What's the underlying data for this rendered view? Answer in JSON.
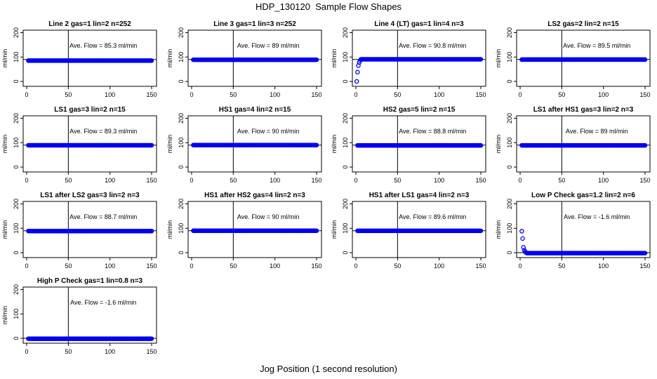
{
  "page": {
    "title": "HDP_130120  Sample Flow Shapes",
    "xlabel": "Jog Position (1 second resolution)"
  },
  "style": {
    "point_color": "#0000ee",
    "axis_color": "#000000"
  },
  "chart_data": [
    {
      "type": "scatter",
      "title": "Line 2 gas=1 lin=2 n=252",
      "ylabel": "ml/min",
      "xlim": [
        0,
        150
      ],
      "ylim": [
        -20,
        210
      ],
      "xticks": [
        0,
        50,
        100,
        150
      ],
      "yticks": [
        0,
        100,
        200
      ],
      "vline": 50,
      "hline": 90,
      "annotation": "Ave. Flow =  85.3  ml/min",
      "shape": "flat",
      "level": 85.3,
      "x": [
        2,
        150
      ]
    },
    {
      "type": "scatter",
      "title": "Line 3 gas=1 lin=3 n=252",
      "ylabel": "ml/min",
      "xlim": [
        0,
        150
      ],
      "ylim": [
        -20,
        210
      ],
      "xticks": [
        0,
        50,
        100,
        150
      ],
      "yticks": [
        0,
        100,
        200
      ],
      "vline": 50,
      "hline": 90,
      "annotation": "Ave. Flow =  89  ml/min",
      "shape": "flat",
      "level": 89,
      "x": [
        2,
        150
      ]
    },
    {
      "type": "scatter",
      "title": "Line 4 (LT) gas=1 lin=4 n=3",
      "ylabel": "ml/min",
      "xlim": [
        0,
        150
      ],
      "ylim": [
        -20,
        210
      ],
      "xticks": [
        0,
        50,
        100,
        150
      ],
      "yticks": [
        0,
        100,
        200
      ],
      "vline": 50,
      "hline": 90,
      "annotation": "Ave. Flow =  90.8  ml/min",
      "shape": "rise",
      "level": 90.8,
      "x": [
        2,
        150
      ],
      "start_points": [
        [
          1,
          0
        ],
        [
          2,
          38
        ],
        [
          3,
          65
        ],
        [
          4,
          78
        ],
        [
          5,
          85
        ]
      ]
    },
    {
      "type": "scatter",
      "title": "LS2 gas=2 lin=2 n=15",
      "ylabel": "ml/min",
      "xlim": [
        0,
        150
      ],
      "ylim": [
        -20,
        210
      ],
      "xticks": [
        0,
        50,
        100,
        150
      ],
      "yticks": [
        0,
        100,
        200
      ],
      "vline": 50,
      "hline": 90,
      "annotation": "Ave. Flow =  89.5  ml/min",
      "shape": "flat",
      "level": 89.5,
      "x": [
        2,
        150
      ]
    },
    {
      "type": "scatter",
      "title": "LS1 gas=3 lin=2 n=15",
      "ylabel": "ml/min",
      "xlim": [
        0,
        150
      ],
      "ylim": [
        -20,
        210
      ],
      "xticks": [
        0,
        50,
        100,
        150
      ],
      "yticks": [
        0,
        100,
        200
      ],
      "vline": 50,
      "hline": 90,
      "annotation": "Ave. Flow =  89.3  ml/min",
      "shape": "flat",
      "level": 89.3,
      "x": [
        2,
        150
      ]
    },
    {
      "type": "scatter",
      "title": "HS1 gas=4 lin=2 n=15",
      "ylabel": "ml/min",
      "xlim": [
        0,
        150
      ],
      "ylim": [
        -20,
        210
      ],
      "xticks": [
        0,
        50,
        100,
        150
      ],
      "yticks": [
        0,
        100,
        200
      ],
      "vline": 50,
      "hline": 90,
      "annotation": "Ave. Flow =  90  ml/min",
      "shape": "flat",
      "level": 90,
      "x": [
        2,
        150
      ]
    },
    {
      "type": "scatter",
      "title": "HS2 gas=5 lin=2 n=15",
      "ylabel": "ml/min",
      "xlim": [
        0,
        150
      ],
      "ylim": [
        -20,
        210
      ],
      "xticks": [
        0,
        50,
        100,
        150
      ],
      "yticks": [
        0,
        100,
        200
      ],
      "vline": 50,
      "hline": 90,
      "annotation": "Ave. Flow =  88.8  ml/min",
      "shape": "flat",
      "level": 88.8,
      "x": [
        2,
        150
      ]
    },
    {
      "type": "scatter",
      "title": "LS1 after HS1 gas=3 lin=2 n=3",
      "ylabel": "ml/min",
      "xlim": [
        0,
        150
      ],
      "ylim": [
        -20,
        210
      ],
      "xticks": [
        0,
        50,
        100,
        150
      ],
      "yticks": [
        0,
        100,
        200
      ],
      "vline": 50,
      "hline": 90,
      "annotation": "Ave. Flow =  89  ml/min",
      "shape": "flat",
      "level": 89,
      "x": [
        2,
        150
      ]
    },
    {
      "type": "scatter",
      "title": "LS1 after LS2 gas=3 lin=2 n=3",
      "ylabel": "ml/min",
      "xlim": [
        0,
        150
      ],
      "ylim": [
        -20,
        210
      ],
      "xticks": [
        0,
        50,
        100,
        150
      ],
      "yticks": [
        0,
        100,
        200
      ],
      "vline": 50,
      "hline": 90,
      "annotation": "Ave. Flow =  88.7  ml/min",
      "shape": "flat",
      "level": 88.7,
      "x": [
        2,
        150
      ]
    },
    {
      "type": "scatter",
      "title": "HS1 after HS2 gas=4 lin=2 n=3",
      "ylabel": "ml/min",
      "xlim": [
        0,
        150
      ],
      "ylim": [
        -20,
        210
      ],
      "xticks": [
        0,
        50,
        100,
        150
      ],
      "yticks": [
        0,
        100,
        200
      ],
      "vline": 50,
      "hline": 90,
      "annotation": "Ave. Flow =  90  ml/min",
      "shape": "flat",
      "level": 90,
      "x": [
        2,
        150
      ]
    },
    {
      "type": "scatter",
      "title": "HS1 after LS1 gas=4 lin=2 n=3",
      "ylabel": "ml/min",
      "xlim": [
        0,
        150
      ],
      "ylim": [
        -20,
        210
      ],
      "xticks": [
        0,
        50,
        100,
        150
      ],
      "yticks": [
        0,
        100,
        200
      ],
      "vline": 50,
      "hline": 90,
      "annotation": "Ave. Flow =  89.6  ml/min",
      "shape": "flat",
      "level": 89.6,
      "x": [
        2,
        150
      ]
    },
    {
      "type": "scatter",
      "title": "Low P Check gas=1.2 lin=2 n=6",
      "ylabel": "ml/min",
      "xlim": [
        0,
        150
      ],
      "ylim": [
        -20,
        210
      ],
      "xticks": [
        0,
        50,
        100,
        150
      ],
      "yticks": [
        0,
        100,
        200
      ],
      "vline": 50,
      "hline": 0,
      "annotation": "Ave. Flow =  -1.6  ml/min",
      "shape": "decay",
      "level": -1.6,
      "x": [
        2,
        150
      ],
      "start_points": [
        [
          2,
          88
        ],
        [
          3,
          58
        ],
        [
          4,
          22
        ],
        [
          5,
          10
        ],
        [
          6,
          4
        ],
        [
          7,
          1
        ]
      ]
    },
    {
      "type": "scatter",
      "title": "High P Check gas=1 lin=0.8 n=3",
      "ylabel": "ml/min",
      "xlim": [
        0,
        150
      ],
      "ylim": [
        -20,
        210
      ],
      "xticks": [
        0,
        50,
        100,
        150
      ],
      "yticks": [
        0,
        100,
        200
      ],
      "vline": 50,
      "hline": 0,
      "annotation": "Ave. Flow =  -1.6  ml/min",
      "shape": "flat",
      "level": -1.6,
      "x": [
        2,
        150
      ]
    }
  ]
}
